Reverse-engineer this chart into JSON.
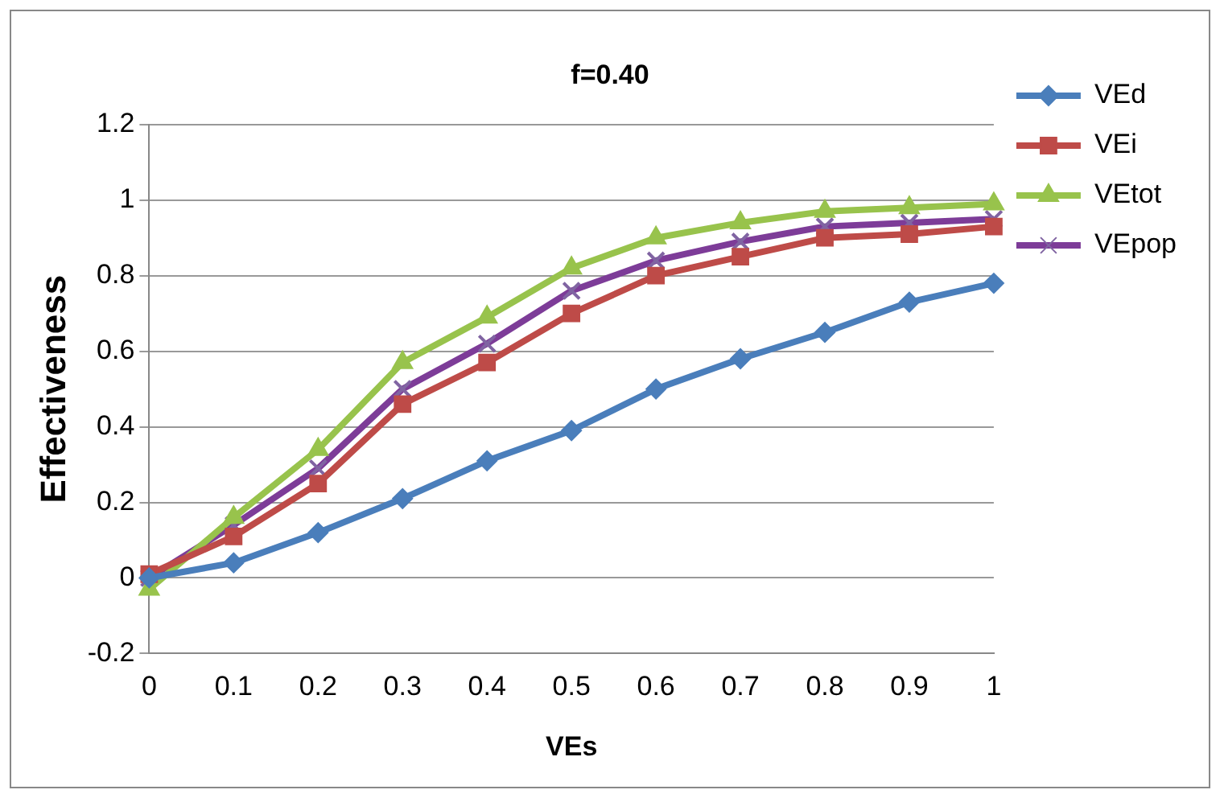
{
  "chart_data": {
    "type": "line",
    "title": "f=0.40",
    "xlabel": "VEs",
    "ylabel": "Effectiveness",
    "categories": [
      "0",
      "0.1",
      "0.2",
      "0.3",
      "0.4",
      "0.5",
      "0.6",
      "0.7",
      "0.8",
      "0.9",
      "1"
    ],
    "series": [
      {
        "name": "VEd",
        "color": "#4a7ebb",
        "marker": "diamond",
        "values": [
          0,
          0.04,
          0.12,
          0.21,
          0.31,
          0.39,
          0.5,
          0.58,
          0.65,
          0.73,
          0.78
        ]
      },
      {
        "name": "VEi",
        "color": "#be4b48",
        "marker": "square",
        "values": [
          0.01,
          0.11,
          0.25,
          0.46,
          0.57,
          0.7,
          0.8,
          0.85,
          0.9,
          0.91,
          0.93
        ]
      },
      {
        "name": "VEtot",
        "color": "#98c34c",
        "marker": "triangle",
        "values": [
          -0.03,
          0.16,
          0.34,
          0.57,
          0.69,
          0.82,
          0.9,
          0.94,
          0.97,
          0.98,
          0.99
        ]
      },
      {
        "name": "VEpop",
        "color": "#7d3c98",
        "marker": "cross",
        "values": [
          0,
          0.14,
          0.29,
          0.5,
          0.62,
          0.76,
          0.84,
          0.89,
          0.93,
          0.94,
          0.95
        ]
      }
    ],
    "ylim": [
      -0.2,
      1.2
    ],
    "yticks": [
      -0.2,
      0,
      0.2,
      0.4,
      0.6,
      0.8,
      1,
      1.2
    ],
    "grid": "y",
    "legend": "right"
  }
}
